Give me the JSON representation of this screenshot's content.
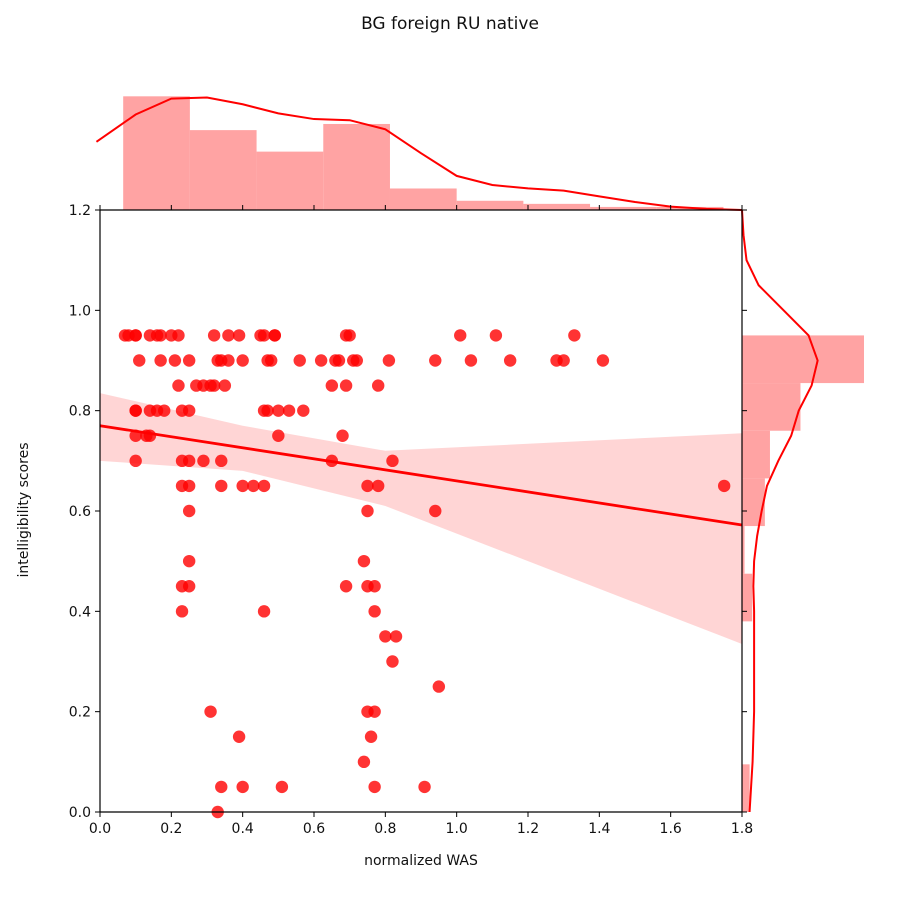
{
  "title": "BG foreign RU native",
  "chart_data": {
    "type": "scatter",
    "title": "BG foreign RU native",
    "xlabel": "normalized WAS",
    "ylabel": "intelligibility scores",
    "xlim": [
      0.0,
      1.8
    ],
    "ylim": [
      0.0,
      1.2
    ],
    "xticks": [
      "0.0",
      "0.2",
      "0.4",
      "0.6",
      "0.8",
      "1.0",
      "1.2",
      "1.4",
      "1.6",
      "1.8"
    ],
    "yticks": [
      "0.0",
      "0.2",
      "0.4",
      "0.6",
      "0.8",
      "1.0",
      "1.2"
    ],
    "grid": false,
    "colors": {
      "points": "#ff0000",
      "line": "#ff0000",
      "band": "#ffc7c7",
      "hist": "#ff9999"
    },
    "points": [
      [
        0.07,
        0.95
      ],
      [
        0.08,
        0.95
      ],
      [
        0.1,
        0.95
      ],
      [
        0.1,
        0.95
      ],
      [
        0.14,
        0.95
      ],
      [
        0.16,
        0.95
      ],
      [
        0.17,
        0.95
      ],
      [
        0.2,
        0.95
      ],
      [
        0.22,
        0.95
      ],
      [
        0.32,
        0.95
      ],
      [
        0.36,
        0.95
      ],
      [
        0.39,
        0.95
      ],
      [
        0.45,
        0.95
      ],
      [
        0.46,
        0.95
      ],
      [
        0.49,
        0.95
      ],
      [
        0.49,
        0.95
      ],
      [
        0.69,
        0.95
      ],
      [
        0.7,
        0.95
      ],
      [
        1.01,
        0.95
      ],
      [
        1.11,
        0.95
      ],
      [
        1.33,
        0.95
      ],
      [
        0.11,
        0.9
      ],
      [
        0.17,
        0.9
      ],
      [
        0.21,
        0.9
      ],
      [
        0.25,
        0.9
      ],
      [
        0.33,
        0.9
      ],
      [
        0.34,
        0.9
      ],
      [
        0.36,
        0.9
      ],
      [
        0.4,
        0.9
      ],
      [
        0.47,
        0.9
      ],
      [
        0.48,
        0.9
      ],
      [
        0.56,
        0.9
      ],
      [
        0.62,
        0.9
      ],
      [
        0.66,
        0.9
      ],
      [
        0.67,
        0.9
      ],
      [
        0.71,
        0.9
      ],
      [
        0.72,
        0.9
      ],
      [
        0.81,
        0.9
      ],
      [
        0.94,
        0.9
      ],
      [
        1.04,
        0.9
      ],
      [
        1.15,
        0.9
      ],
      [
        1.28,
        0.9
      ],
      [
        1.3,
        0.9
      ],
      [
        1.41,
        0.9
      ],
      [
        0.22,
        0.85
      ],
      [
        0.27,
        0.85
      ],
      [
        0.29,
        0.85
      ],
      [
        0.31,
        0.85
      ],
      [
        0.32,
        0.85
      ],
      [
        0.35,
        0.85
      ],
      [
        0.65,
        0.85
      ],
      [
        0.69,
        0.85
      ],
      [
        0.78,
        0.85
      ],
      [
        0.1,
        0.8
      ],
      [
        0.1,
        0.8
      ],
      [
        0.14,
        0.8
      ],
      [
        0.16,
        0.8
      ],
      [
        0.18,
        0.8
      ],
      [
        0.23,
        0.8
      ],
      [
        0.25,
        0.8
      ],
      [
        0.46,
        0.8
      ],
      [
        0.47,
        0.8
      ],
      [
        0.5,
        0.8
      ],
      [
        0.53,
        0.8
      ],
      [
        0.57,
        0.8
      ],
      [
        0.14,
        0.75
      ],
      [
        0.13,
        0.75
      ],
      [
        0.1,
        0.75
      ],
      [
        0.5,
        0.75
      ],
      [
        0.68,
        0.75
      ],
      [
        0.1,
        0.7
      ],
      [
        0.23,
        0.7
      ],
      [
        0.25,
        0.7
      ],
      [
        0.29,
        0.7
      ],
      [
        0.34,
        0.7
      ],
      [
        0.65,
        0.7
      ],
      [
        0.82,
        0.7
      ],
      [
        0.23,
        0.65
      ],
      [
        0.25,
        0.65
      ],
      [
        0.34,
        0.65
      ],
      [
        0.4,
        0.65
      ],
      [
        0.43,
        0.65
      ],
      [
        0.46,
        0.65
      ],
      [
        0.75,
        0.65
      ],
      [
        0.78,
        0.65
      ],
      [
        1.75,
        0.65
      ],
      [
        0.25,
        0.6
      ],
      [
        0.75,
        0.6
      ],
      [
        0.94,
        0.6
      ],
      [
        0.25,
        0.5
      ],
      [
        0.74,
        0.5
      ],
      [
        0.23,
        0.45
      ],
      [
        0.25,
        0.45
      ],
      [
        0.69,
        0.45
      ],
      [
        0.75,
        0.45
      ],
      [
        0.77,
        0.45
      ],
      [
        0.23,
        0.4
      ],
      [
        0.46,
        0.4
      ],
      [
        0.77,
        0.4
      ],
      [
        0.8,
        0.35
      ],
      [
        0.83,
        0.35
      ],
      [
        0.82,
        0.3
      ],
      [
        0.95,
        0.25
      ],
      [
        0.31,
        0.2
      ],
      [
        0.75,
        0.2
      ],
      [
        0.77,
        0.2
      ],
      [
        0.39,
        0.15
      ],
      [
        0.76,
        0.15
      ],
      [
        0.74,
        0.1
      ],
      [
        0.34,
        0.05
      ],
      [
        0.4,
        0.05
      ],
      [
        0.51,
        0.05
      ],
      [
        0.77,
        0.05
      ],
      [
        0.91,
        0.05
      ],
      [
        0.33,
        0.0
      ]
    ],
    "regression": {
      "x": [
        0.0,
        1.8
      ],
      "y": [
        0.77,
        0.572
      ]
    },
    "confidence_band": {
      "x": [
        0.0,
        0.4,
        0.8,
        1.2,
        1.6,
        1.8
      ],
      "upper": [
        0.835,
        0.77,
        0.72,
        0.734,
        0.748,
        0.755
      ],
      "lower": [
        0.7,
        0.68,
        0.61,
        0.5,
        0.39,
        0.335
      ]
    },
    "top_histogram": {
      "bins": [
        0.065,
        0.252,
        0.439,
        0.626,
        0.813,
        1.0,
        1.187,
        1.374,
        1.561,
        1.748
      ],
      "counts": [
        37,
        26,
        19,
        28,
        7,
        3,
        2,
        1,
        1
      ]
    },
    "top_kde": {
      "x": [
        -0.01,
        0.1,
        0.2,
        0.3,
        0.4,
        0.5,
        0.6,
        0.7,
        0.8,
        0.9,
        1.0,
        1.1,
        1.2,
        1.3,
        1.4,
        1.5,
        1.6,
        1.7,
        1.8
      ],
      "d": [
        0.6,
        0.84,
        0.98,
        0.99,
        0.93,
        0.85,
        0.8,
        0.79,
        0.71,
        0.5,
        0.3,
        0.22,
        0.19,
        0.17,
        0.12,
        0.07,
        0.03,
        0.01,
        0.0
      ]
    },
    "right_histogram": {
      "bins": [
        0.0,
        0.095,
        0.19,
        0.285,
        0.38,
        0.475,
        0.57,
        0.665,
        0.76,
        0.855,
        0.95
      ],
      "counts": [
        3,
        0,
        0,
        0,
        4,
        1,
        9,
        11,
        23,
        48
      ]
    },
    "right_kde": {
      "y": [
        0.0,
        0.05,
        0.1,
        0.15,
        0.2,
        0.25,
        0.3,
        0.35,
        0.4,
        0.45,
        0.5,
        0.55,
        0.6,
        0.65,
        0.7,
        0.75,
        0.8,
        0.85,
        0.9,
        0.95,
        1.0,
        1.05,
        1.1,
        1.15,
        1.2
      ],
      "d": [
        0.1,
        0.12,
        0.14,
        0.15,
        0.16,
        0.16,
        0.16,
        0.16,
        0.16,
        0.15,
        0.16,
        0.2,
        0.26,
        0.33,
        0.48,
        0.65,
        0.75,
        0.92,
        1.0,
        0.88,
        0.55,
        0.22,
        0.06,
        0.02,
        0.0
      ]
    }
  }
}
